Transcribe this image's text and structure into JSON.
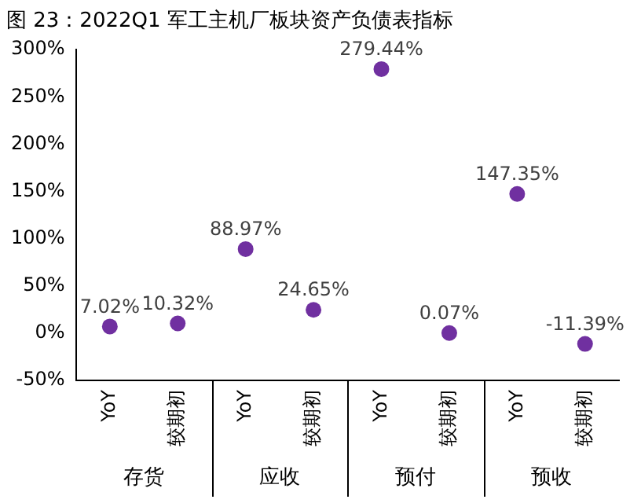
{
  "chart_data": {
    "type": "scatter",
    "title": "图 23：2022Q1 军工主机厂板块资产负债表指标",
    "categories": [
      "YoY",
      "较期初",
      "YoY",
      "较期初",
      "YoY",
      "较期初",
      "YoY",
      "较期初"
    ],
    "values": [
      7.02,
      10.32,
      88.97,
      24.65,
      279.44,
      0.07,
      147.35,
      -11.39
    ],
    "value_labels": [
      "7.02%",
      "10.32%",
      "88.97%",
      "24.65%",
      "279.44%",
      "0.07%",
      "147.35%",
      "-11.39%"
    ],
    "color": "#7030a0",
    "marker": "circle",
    "grid": false,
    "legend": false,
    "ylim": [
      -50,
      300
    ],
    "yticks": [
      {
        "value": -50,
        "label": "-50%"
      },
      {
        "value": 0,
        "label": "0%"
      },
      {
        "value": 50,
        "label": "50%"
      },
      {
        "value": 100,
        "label": "100%"
      },
      {
        "value": 150,
        "label": "150%"
      },
      {
        "value": 200,
        "label": "200%"
      },
      {
        "value": 250,
        "label": "250%"
      },
      {
        "value": 300,
        "label": "300%"
      }
    ],
    "annotations": [
      "存货",
      "应收",
      "预付",
      "预收"
    ]
  }
}
